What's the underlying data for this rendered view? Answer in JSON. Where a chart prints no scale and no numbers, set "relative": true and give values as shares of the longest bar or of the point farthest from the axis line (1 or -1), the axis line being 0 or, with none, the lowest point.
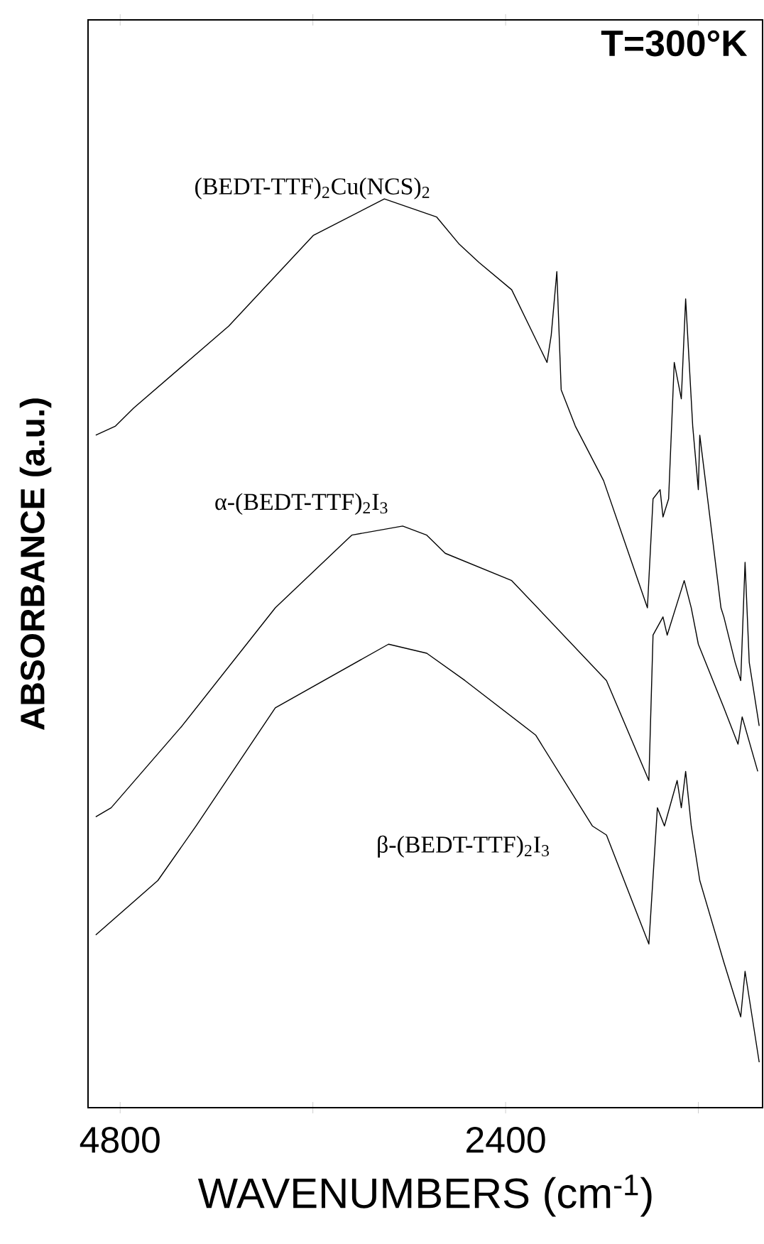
{
  "chart_data": {
    "type": "line",
    "relative": true,
    "xlabel": "WAVENUMBERS (cm$^{-1}$)",
    "ylabel": "ABSORBANCE (a.u.)",
    "annotations": [
      "T=300°K"
    ],
    "xlim": [
      5000,
      800
    ],
    "xticks": [
      4800,
      {
        "value": 3600,
        "label": null
      },
      2400,
      {
        "value": 1200,
        "label": null
      }
    ],
    "series": [
      {
        "name": "(BEDT-TTF)$_{2}$Cu(NCS)$_{2}$",
        "color": "#000000",
        "x": [
          4952,
          4829,
          4715,
          4124,
          3596,
          3155,
          2829,
          2688,
          2565,
          2362,
          2142,
          2116,
          2081,
          2054,
          1966,
          1790,
          1517,
          1482,
          1438,
          1420,
          1385,
          1350,
          1306,
          1279,
          1235,
          1200,
          1191,
          1156,
          1059,
          1041,
          971,
          936,
          909,
          883,
          821
        ],
        "values": [
          0.74,
          0.75,
          0.77,
          0.86,
          0.96,
          1.0,
          0.98,
          0.95,
          0.93,
          0.9,
          0.82,
          0.85,
          0.92,
          0.79,
          0.75,
          0.69,
          0.55,
          0.67,
          0.68,
          0.65,
          0.67,
          0.82,
          0.78,
          0.89,
          0.75,
          0.68,
          0.74,
          0.69,
          0.55,
          0.54,
          0.49,
          0.47,
          0.6,
          0.49,
          0.42
        ]
      },
      {
        "name": "α-(BEDT-TTF)$_{2}$I$_{3}$",
        "color": "#000000",
        "x": [
          4952,
          4856,
          4415,
          3834,
          3358,
          3041,
          2891,
          2776,
          2362,
          1772,
          1508,
          1482,
          1420,
          1394,
          1288,
          1244,
          1200,
          1041,
          953,
          927,
          830
        ],
        "values": [
          0.32,
          0.33,
          0.42,
          0.55,
          0.63,
          0.64,
          0.63,
          0.61,
          0.58,
          0.47,
          0.36,
          0.52,
          0.54,
          0.52,
          0.58,
          0.55,
          0.51,
          0.44,
          0.4,
          0.43,
          0.37
        ]
      },
      {
        "name": "β-(BEDT-TTF)$_{2}$I$_{3}$",
        "color": "#000000",
        "x": [
          4952,
          4565,
          4327,
          3834,
          3129,
          2891,
          2653,
          2213,
          1860,
          1772,
          1508,
          1455,
          1411,
          1332,
          1306,
          1279,
          1244,
          1191,
          1041,
          936,
          909,
          821
        ],
        "values": [
          0.19,
          0.25,
          0.31,
          0.44,
          0.51,
          0.5,
          0.47,
          0.41,
          0.31,
          0.3,
          0.18,
          0.33,
          0.31,
          0.36,
          0.33,
          0.37,
          0.31,
          0.25,
          0.16,
          0.1,
          0.15,
          0.05
        ]
      }
    ]
  }
}
